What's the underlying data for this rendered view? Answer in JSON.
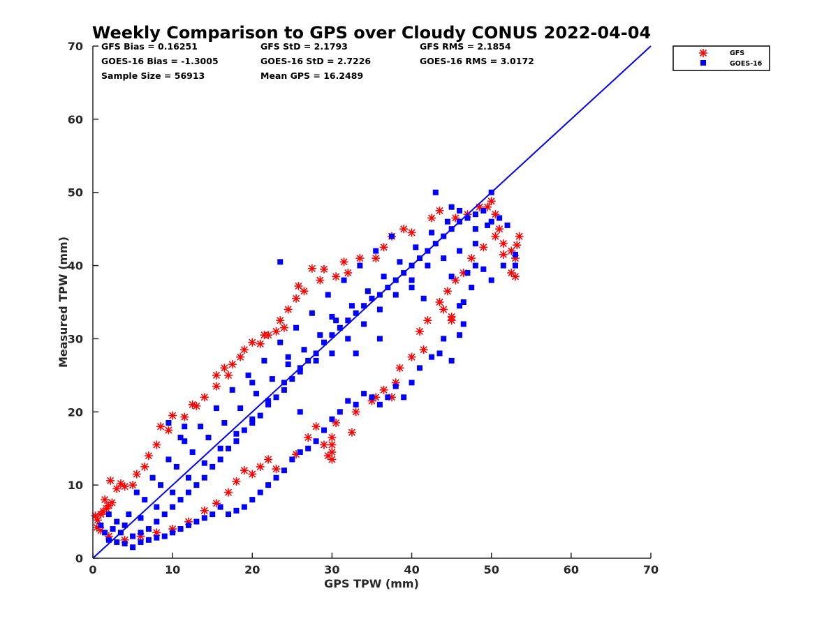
{
  "chart_data": {
    "type": "scatter",
    "title": "Weekly Comparison to GPS over Cloudy CONUS 2022-04-04",
    "xlabel": "GPS TPW (mm)",
    "ylabel": "Measured TPW (mm)",
    "xlim": [
      0,
      70
    ],
    "ylim": [
      0,
      70
    ],
    "xticks": [
      "0",
      "10",
      "20",
      "30",
      "40",
      "50",
      "60",
      "70"
    ],
    "yticks": [
      "0",
      "10",
      "20",
      "30",
      "40",
      "50",
      "60",
      "70"
    ],
    "grid": false,
    "legend_position": "outside-top-right",
    "stats": [
      [
        "GFS Bias = 0.16251",
        "GFS StD = 2.1793",
        "GFS RMS = 2.1854"
      ],
      [
        "GOES-16 Bias = -1.3005",
        "GOES-16 StD = 2.7226",
        "GOES-16 RMS = 3.0172"
      ],
      [
        "Sample Size = 56913",
        "Mean GPS = 16.2489",
        ""
      ]
    ],
    "reference_line": {
      "x": [
        0,
        70
      ],
      "y": [
        0,
        70
      ],
      "color": "#0000ff"
    },
    "series": [
      {
        "name": "GFS",
        "marker": "asterisk",
        "color": "#ff0000",
        "points": [
          [
            0.3,
            5.8
          ],
          [
            0.6,
            5.2
          ],
          [
            1.0,
            6.0
          ],
          [
            1.3,
            6.4
          ],
          [
            1.7,
            6.8
          ],
          [
            2.0,
            7.2
          ],
          [
            2.4,
            7.6
          ],
          [
            2.2,
            10.6
          ],
          [
            3.5,
            10.2
          ],
          [
            4.0,
            9.8
          ],
          [
            5.0,
            10.0
          ],
          [
            6.5,
            12.5
          ],
          [
            8.0,
            15.5
          ],
          [
            8.5,
            18.0
          ],
          [
            10.0,
            19.5
          ],
          [
            11.5,
            19.3
          ],
          [
            13.0,
            20.8
          ],
          [
            14.0,
            22.0
          ],
          [
            15.5,
            23.5
          ],
          [
            15.5,
            25.0
          ],
          [
            16.5,
            26.0
          ],
          [
            17.0,
            25.0
          ],
          [
            17.5,
            26.5
          ],
          [
            19.0,
            28.5
          ],
          [
            20.0,
            29.5
          ],
          [
            21.0,
            29.3
          ],
          [
            22.0,
            30.5
          ],
          [
            23.0,
            31.0
          ],
          [
            23.5,
            32.5
          ],
          [
            24.0,
            31.5
          ],
          [
            25.5,
            35.5
          ],
          [
            25.8,
            37.2
          ],
          [
            27.5,
            39.6
          ],
          [
            28.5,
            38.0
          ],
          [
            30.5,
            38.5
          ],
          [
            31.5,
            40.5
          ],
          [
            32.0,
            39.0
          ],
          [
            33.5,
            41.0
          ],
          [
            35.5,
            41.0
          ],
          [
            36.5,
            42.5
          ],
          [
            37.5,
            44.0
          ],
          [
            39.0,
            45.0
          ],
          [
            40.0,
            44.5
          ],
          [
            42.5,
            46.5
          ],
          [
            43.5,
            47.5
          ],
          [
            45.5,
            46.5
          ],
          [
            47.0,
            47.0
          ],
          [
            48.5,
            48.0
          ],
          [
            49.5,
            48.0
          ],
          [
            50.0,
            48.8
          ],
          [
            50.5,
            47.0
          ],
          [
            51.0,
            45.0
          ],
          [
            51.5,
            43.0
          ],
          [
            52.5,
            42.0
          ],
          [
            53.0,
            38.5
          ],
          [
            52.5,
            39.0
          ],
          [
            53.5,
            44.0
          ],
          [
            53.2,
            42.8
          ],
          [
            53.0,
            41.0
          ],
          [
            51.5,
            41.5
          ],
          [
            50.5,
            44.0
          ],
          [
            49.0,
            42.5
          ],
          [
            47.5,
            41.0
          ],
          [
            46.5,
            39.0
          ],
          [
            45.5,
            38.0
          ],
          [
            44.5,
            36.5
          ],
          [
            43.5,
            35.0
          ],
          [
            45.0,
            33.0
          ],
          [
            45.0,
            32.5
          ],
          [
            44.0,
            34.0
          ],
          [
            42.0,
            32.5
          ],
          [
            41.0,
            31.0
          ],
          [
            41.5,
            28.5
          ],
          [
            40.0,
            27.5
          ],
          [
            38.5,
            26.0
          ],
          [
            38.0,
            24.0
          ],
          [
            37.5,
            22.0
          ],
          [
            36.5,
            23.0
          ],
          [
            35.5,
            22.0
          ],
          [
            35.0,
            21.5
          ],
          [
            33.0,
            20.0
          ],
          [
            32.5,
            17.2
          ],
          [
            30.5,
            18.5
          ],
          [
            30.0,
            16.5
          ],
          [
            30.0,
            15.5
          ],
          [
            30.0,
            14.5
          ],
          [
            30.0,
            13.5
          ],
          [
            29.5,
            14.0
          ],
          [
            29.0,
            15.5
          ],
          [
            28.0,
            18.0
          ],
          [
            27.0,
            16.5
          ],
          [
            25.5,
            14.2
          ],
          [
            23.0,
            12.2
          ],
          [
            22.0,
            13.5
          ],
          [
            21.0,
            12.5
          ],
          [
            20.0,
            11.5
          ],
          [
            19.0,
            12.0
          ],
          [
            18.0,
            10.5
          ],
          [
            17.0,
            9.0
          ],
          [
            15.5,
            7.5
          ],
          [
            14.0,
            6.5
          ],
          [
            12.0,
            5.0
          ],
          [
            10.0,
            4.0
          ],
          [
            8.0,
            3.5
          ],
          [
            6.0,
            3.0
          ],
          [
            4.0,
            2.5
          ],
          [
            2.0,
            3.0
          ],
          [
            1.0,
            3.8
          ],
          [
            0.5,
            4.2
          ],
          [
            1.5,
            8.0
          ],
          [
            3.0,
            9.5
          ],
          [
            5.5,
            11.5
          ],
          [
            7.0,
            14.0
          ],
          [
            9.5,
            17.5
          ],
          [
            12.5,
            21.0
          ],
          [
            18.5,
            27.5
          ],
          [
            21.5,
            30.5
          ],
          [
            24.5,
            34.0
          ],
          [
            26.5,
            36.5
          ],
          [
            29.0,
            39.5
          ]
        ]
      },
      {
        "name": "GOES-16",
        "marker": "square",
        "color": "#0000ff",
        "points": [
          [
            1.0,
            4.5
          ],
          [
            1.5,
            3.5
          ],
          [
            2.0,
            2.5
          ],
          [
            3.0,
            2.2
          ],
          [
            4.0,
            2.0
          ],
          [
            5.0,
            3.0
          ],
          [
            6.0,
            3.5
          ],
          [
            7.0,
            4.0
          ],
          [
            8.0,
            5.0
          ],
          [
            9.0,
            6.0
          ],
          [
            10.0,
            7.0
          ],
          [
            11.0,
            8.0
          ],
          [
            12.0,
            9.0
          ],
          [
            13.0,
            10.0
          ],
          [
            14.0,
            11.0
          ],
          [
            15.0,
            12.5
          ],
          [
            16.0,
            13.5
          ],
          [
            17.0,
            15.0
          ],
          [
            18.0,
            16.0
          ],
          [
            19.0,
            17.5
          ],
          [
            20.0,
            18.5
          ],
          [
            21.0,
            19.5
          ],
          [
            22.0,
            21.0
          ],
          [
            23.0,
            22.0
          ],
          [
            24.0,
            23.0
          ],
          [
            25.0,
            24.5
          ],
          [
            26.0,
            26.0
          ],
          [
            27.0,
            27.0
          ],
          [
            28.0,
            28.0
          ],
          [
            29.0,
            29.5
          ],
          [
            30.0,
            30.5
          ],
          [
            31.0,
            31.5
          ],
          [
            32.0,
            32.5
          ],
          [
            33.0,
            33.5
          ],
          [
            34.0,
            34.5
          ],
          [
            35.0,
            35.5
          ],
          [
            36.0,
            36.0
          ],
          [
            37.0,
            37.0
          ],
          [
            38.0,
            38.0
          ],
          [
            39.0,
            39.0
          ],
          [
            40.0,
            40.0
          ],
          [
            41.0,
            41.0
          ],
          [
            42.0,
            42.0
          ],
          [
            43.0,
            43.0
          ],
          [
            44.0,
            44.0
          ],
          [
            45.0,
            45.0
          ],
          [
            46.0,
            46.0
          ],
          [
            47.0,
            46.5
          ],
          [
            48.0,
            47.0
          ],
          [
            49.0,
            47.5
          ],
          [
            50.0,
            50.0
          ],
          [
            43.0,
            50.0
          ],
          [
            45.0,
            48.0
          ],
          [
            46.0,
            47.5
          ],
          [
            50.0,
            46.0
          ],
          [
            51.0,
            46.5
          ],
          [
            52.0,
            45.5
          ],
          [
            53.0,
            40.0
          ],
          [
            53.0,
            41.5
          ],
          [
            51.5,
            40.0
          ],
          [
            50.0,
            38.0
          ],
          [
            49.0,
            39.5
          ],
          [
            48.0,
            40.0
          ],
          [
            47.0,
            39.0
          ],
          [
            47.5,
            37.0
          ],
          [
            46.5,
            35.0
          ],
          [
            46.0,
            34.5
          ],
          [
            46.5,
            32.0
          ],
          [
            46.0,
            30.5
          ],
          [
            45.0,
            27.0
          ],
          [
            44.0,
            30.0
          ],
          [
            43.5,
            28.0
          ],
          [
            42.5,
            27.5
          ],
          [
            41.0,
            26.0
          ],
          [
            40.0,
            24.0
          ],
          [
            39.0,
            22.0
          ],
          [
            38.0,
            23.5
          ],
          [
            37.0,
            22.0
          ],
          [
            36.0,
            21.0
          ],
          [
            35.0,
            22.0
          ],
          [
            34.0,
            22.5
          ],
          [
            33.0,
            21.0
          ],
          [
            32.0,
            21.5
          ],
          [
            31.0,
            20.0
          ],
          [
            30.0,
            19.0
          ],
          [
            29.0,
            17.5
          ],
          [
            28.0,
            16.0
          ],
          [
            27.0,
            15.0
          ],
          [
            26.0,
            14.5
          ],
          [
            25.0,
            13.5
          ],
          [
            24.0,
            12.0
          ],
          [
            23.0,
            11.0
          ],
          [
            22.0,
            10.0
          ],
          [
            21.0,
            9.0
          ],
          [
            20.0,
            8.0
          ],
          [
            19.0,
            7.0
          ],
          [
            18.0,
            6.5
          ],
          [
            17.0,
            6.0
          ],
          [
            16.0,
            7.0
          ],
          [
            15.0,
            6.0
          ],
          [
            14.0,
            5.5
          ],
          [
            13.0,
            5.0
          ],
          [
            12.0,
            4.5
          ],
          [
            11.0,
            4.0
          ],
          [
            10.0,
            3.5
          ],
          [
            9.0,
            3.0
          ],
          [
            8.0,
            2.8
          ],
          [
            7.0,
            2.5
          ],
          [
            6.0,
            2.2
          ],
          [
            5.0,
            1.5
          ],
          [
            3.5,
            3.5
          ],
          [
            2.5,
            4.0
          ],
          [
            4.5,
            6.0
          ],
          [
            6.5,
            8.0
          ],
          [
            8.5,
            10.0
          ],
          [
            10.5,
            12.5
          ],
          [
            12.5,
            14.5
          ],
          [
            14.5,
            16.5
          ],
          [
            16.5,
            18.5
          ],
          [
            18.5,
            20.5
          ],
          [
            20.5,
            22.5
          ],
          [
            22.5,
            24.5
          ],
          [
            24.5,
            26.5
          ],
          [
            26.5,
            28.5
          ],
          [
            28.5,
            30.5
          ],
          [
            30.5,
            32.5
          ],
          [
            32.5,
            34.5
          ],
          [
            34.5,
            36.5
          ],
          [
            36.5,
            38.5
          ],
          [
            38.5,
            40.5
          ],
          [
            40.5,
            42.5
          ],
          [
            42.5,
            44.5
          ],
          [
            44.5,
            46.0
          ],
          [
            37.5,
            44.0
          ],
          [
            35.5,
            42.0
          ],
          [
            33.5,
            40.0
          ],
          [
            31.5,
            38.0
          ],
          [
            29.5,
            36.0
          ],
          [
            27.5,
            33.5
          ],
          [
            25.5,
            31.5
          ],
          [
            23.5,
            29.5
          ],
          [
            21.5,
            27.0
          ],
          [
            19.5,
            25.0
          ],
          [
            17.5,
            23.0
          ],
          [
            15.5,
            20.5
          ],
          [
            13.5,
            18.0
          ],
          [
            11.5,
            16.0
          ],
          [
            9.5,
            13.5
          ],
          [
            7.5,
            11.0
          ],
          [
            5.5,
            9.0
          ],
          [
            23.5,
            40.5
          ],
          [
            30.0,
            33.0
          ],
          [
            40.0,
            37.0
          ],
          [
            48.0,
            43.0
          ],
          [
            11.0,
            16.5
          ],
          [
            20.0,
            24.0
          ],
          [
            26.0,
            20.0
          ],
          [
            33.0,
            28.0
          ],
          [
            41.5,
            35.5
          ],
          [
            45.0,
            38.5
          ],
          [
            2.0,
            6.0
          ],
          [
            3.0,
            5.0
          ],
          [
            4.0,
            4.5
          ],
          [
            6.0,
            5.5
          ],
          [
            8.0,
            7.0
          ],
          [
            10.0,
            9.0
          ],
          [
            12.0,
            11.0
          ],
          [
            14.0,
            13.0
          ],
          [
            16.0,
            15.0
          ],
          [
            18.0,
            17.0
          ],
          [
            20.0,
            19.0
          ],
          [
            22.0,
            21.5
          ],
          [
            24.0,
            24.0
          ],
          [
            26.0,
            25.5
          ],
          [
            28.0,
            27.0
          ],
          [
            30.0,
            28.0
          ],
          [
            32.0,
            30.0
          ],
          [
            34.0,
            32.0
          ],
          [
            36.0,
            34.0
          ],
          [
            38.0,
            36.0
          ],
          [
            40.0,
            38.0
          ],
          [
            42.0,
            40.0
          ],
          [
            44.0,
            41.0
          ],
          [
            46.0,
            42.0
          ],
          [
            48.0,
            45.0
          ],
          [
            49.5,
            45.5
          ],
          [
            9.5,
            18.5
          ],
          [
            11.5,
            18.0
          ],
          [
            24.5,
            27.5
          ],
          [
            36.0,
            30.0
          ]
        ]
      }
    ]
  },
  "icons": {
    "gfs_marker": "asterisk-icon",
    "goes_marker": "square-icon"
  }
}
